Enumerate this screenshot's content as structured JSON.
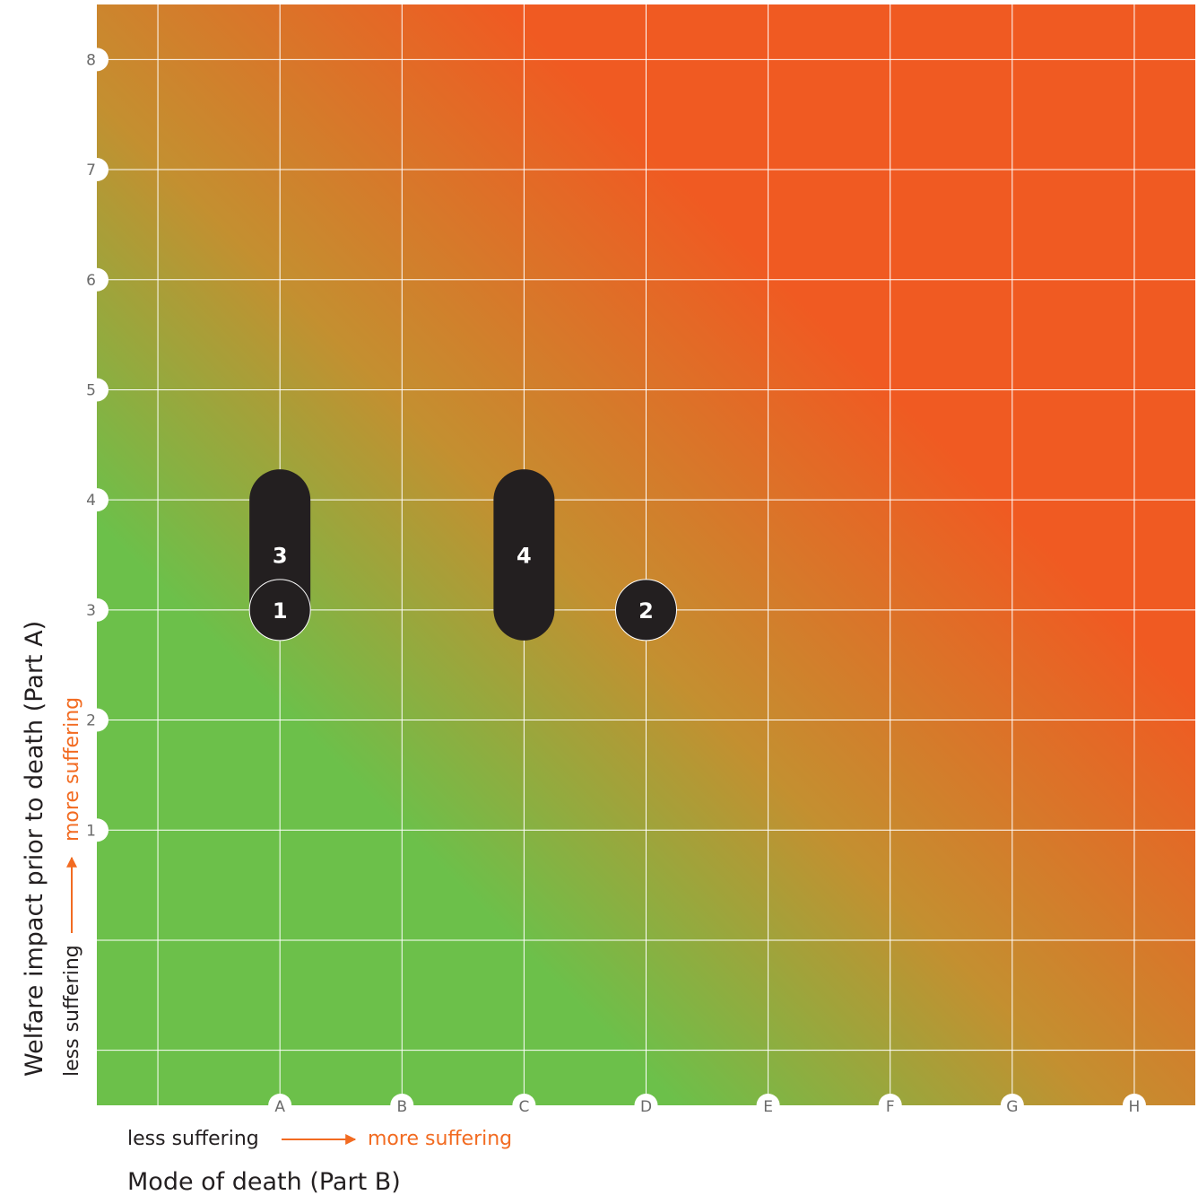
{
  "chart_data": {
    "type": "scatter",
    "title": "",
    "xlabel": "Mode of death (Part B)",
    "ylabel": "Welfare impact prior to death (Part A)",
    "x_direction": {
      "low": "less suffering",
      "high": "more suffering"
    },
    "y_direction": {
      "low": "less suffering",
      "high": "more suffering"
    },
    "x_categories": [
      "A",
      "B",
      "C",
      "D",
      "E",
      "F",
      "G",
      "H"
    ],
    "y_ticks": [
      "1",
      "2",
      "3",
      "4",
      "5",
      "6",
      "7",
      "8"
    ],
    "xlim": [
      -1.5,
      7.5
    ],
    "ylim": [
      -1.5,
      8.5
    ],
    "grid": true,
    "background": "gradient from green (low suffering, bottom-left) to orange-red (high suffering, top-right)",
    "colors": {
      "low_suffering": "#6cc04a",
      "mid": "#c48f30",
      "high_suffering": "#f05a22",
      "marker": "#231f20",
      "marker_text": "#ffffff",
      "grid": "#ffffff",
      "tick_text": "#6a6a6a",
      "accent_text": "#f26b21"
    },
    "points": [
      {
        "label": "3",
        "x": "A",
        "y_min": 3,
        "y_max": 4
      },
      {
        "label": "1",
        "x": "A",
        "y_min": 3,
        "y_max": 3
      },
      {
        "label": "4",
        "x": "C",
        "y_min": 3,
        "y_max": 4
      },
      {
        "label": "2",
        "x": "D",
        "y_min": 3,
        "y_max": 3
      }
    ]
  }
}
